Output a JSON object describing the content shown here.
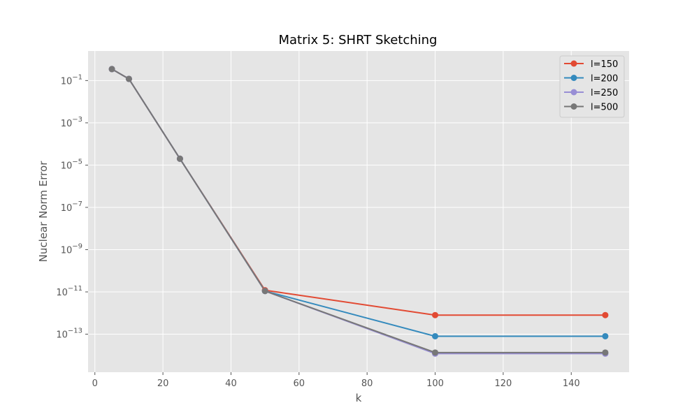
{
  "chart_data": {
    "type": "line",
    "title": "Matrix 5: SHRT Sketching",
    "xlabel": "k",
    "ylabel": "Nuclear Norm Error",
    "yscale": "log",
    "xlim": [
      -2,
      157
    ],
    "ylim_log10": [
      -14.8,
      0.4
    ],
    "x_ticks": [
      0,
      20,
      40,
      60,
      80,
      100,
      120,
      140
    ],
    "y_tick_exponents": [
      -1,
      -3,
      -5,
      -7,
      -9,
      -11,
      -13
    ],
    "grid": true,
    "legend_position": "top-right",
    "x": [
      5,
      10,
      25,
      50,
      100,
      150
    ],
    "series": [
      {
        "name": "l=150",
        "color": "#E24A33",
        "values": [
          0.35,
          0.12,
          2e-05,
          1.2e-11,
          8e-13,
          8e-13
        ]
      },
      {
        "name": "l=200",
        "color": "#348ABD",
        "values": [
          0.35,
          0.12,
          2e-05,
          1.1e-11,
          8e-14,
          8e-14
        ]
      },
      {
        "name": "l=250",
        "color": "#988ED5",
        "values": [
          0.35,
          0.12,
          2e-05,
          1.1e-11,
          1.2e-14,
          1.2e-14
        ]
      },
      {
        "name": "l=500",
        "color": "#777777",
        "values": [
          0.35,
          0.12,
          2e-05,
          1.1e-11,
          1.35e-14,
          1.35e-14
        ]
      }
    ]
  }
}
